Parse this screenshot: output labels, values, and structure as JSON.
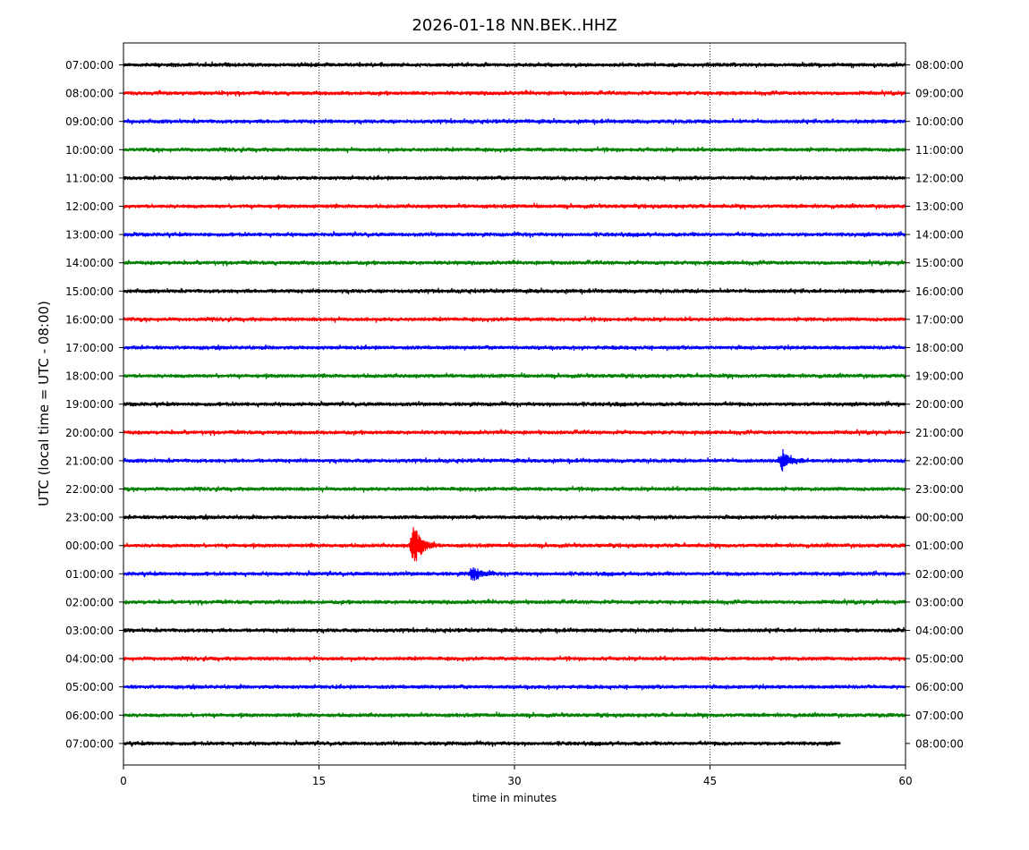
{
  "chart_data": {
    "type": "line",
    "title": "2026-01-18 NN.BEK..HHZ",
    "xlabel": "time in minutes",
    "ylabel": "UTC (local time = UTC - 08:00)",
    "xlim": [
      0,
      60
    ],
    "x_ticks": [
      0,
      15,
      30,
      45,
      60
    ],
    "x_tick_labels": [
      "0",
      "15",
      "30",
      "45",
      "60"
    ],
    "grid": "vertical dotted at 15, 30, 45",
    "trace_colors": [
      "#000000",
      "#ff0000",
      "#0000ff",
      "#008000"
    ],
    "left_labels": [
      "07:00:00",
      "08:00:00",
      "09:00:00",
      "10:00:00",
      "11:00:00",
      "12:00:00",
      "13:00:00",
      "14:00:00",
      "15:00:00",
      "16:00:00",
      "17:00:00",
      "18:00:00",
      "19:00:00",
      "20:00:00",
      "21:00:00",
      "22:00:00",
      "23:00:00",
      "00:00:00",
      "01:00:00",
      "02:00:00",
      "03:00:00",
      "04:00:00",
      "05:00:00",
      "06:00:00",
      "07:00:00"
    ],
    "right_labels": [
      "08:00:00",
      "09:00:00",
      "10:00:00",
      "11:00:00",
      "12:00:00",
      "13:00:00",
      "14:00:00",
      "15:00:00",
      "16:00:00",
      "17:00:00",
      "18:00:00",
      "19:00:00",
      "20:00:00",
      "21:00:00",
      "22:00:00",
      "23:00:00",
      "00:00:00",
      "01:00:00",
      "02:00:00",
      "03:00:00",
      "04:00:00",
      "05:00:00",
      "06:00:00",
      "07:00:00",
      "08:00:00"
    ],
    "trace_end_minutes": [
      60,
      60,
      60,
      60,
      60,
      60,
      60,
      60,
      60,
      60,
      60,
      60,
      60,
      60,
      60,
      60,
      60,
      60,
      60,
      60,
      60,
      60,
      60,
      60,
      55
    ],
    "events": [
      {
        "row": 14,
        "minute": 50.6,
        "amplitude": 1.0
      },
      {
        "row": 17,
        "minute": 22.3,
        "amplitude": 2.0
      },
      {
        "row": 18,
        "minute": 26.8,
        "amplitude": 0.7
      }
    ]
  }
}
